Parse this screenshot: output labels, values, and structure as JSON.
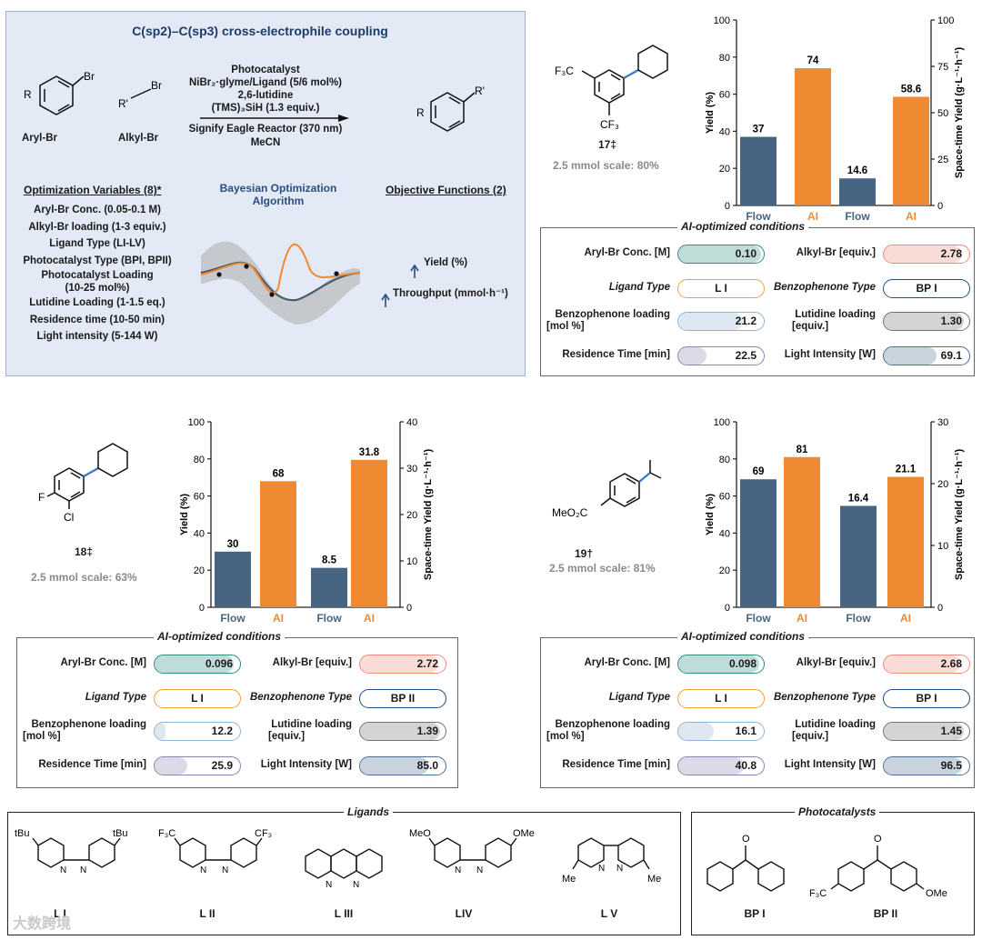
{
  "colors": {
    "flow": "#476482",
    "ai": "#f08a32",
    "teal": "#2d8b80",
    "salmon": "#ee8a7c",
    "orange": "#f0a33b",
    "navy": "#1f4e8c",
    "sky": "#8fb4d8",
    "gray": "#707070",
    "lavender": "#8d82ad",
    "steel": "#4d6e91"
  },
  "scheme": {
    "title": "C(sp2)–C(sp3) cross-electrophile coupling",
    "aryl_label": "Aryl-Br",
    "alkyl_label": "Alkyl-Br",
    "conditions": [
      "Photocatalyst",
      "NiBr₂·glyme/Ligand (5/6 mol%)",
      "2,6-lutidine",
      "(TMS)₃SiH (1.3 equiv.)"
    ],
    "conditions_below": [
      "Signify Eagle Reactor (370 nm)",
      "MeCN"
    ],
    "opt_vars_title": "Optimization Variables (8)*",
    "opt_vars": [
      "Aryl-Br Conc. (0.05-0.1 M)",
      "Alkyl-Br loading (1-3 equiv.)",
      "Ligand Type (LI-LV)",
      "Photocatalyst Type (BPI, BPII)",
      "Photocatalyst Loading",
      "(10-25 mol%)",
      "Lutidine Loading (1-1.5 eq.)",
      "Residence time (10-50 min)",
      "Light intensity (5-144 W)"
    ],
    "bo_title": [
      "Bayesian Optimization",
      "Algorithm"
    ],
    "obj_title": "Objective Functions (2)",
    "objectives": [
      "Yield (%)",
      "Throughput (mmol·h⁻¹)"
    ]
  },
  "products": {
    "p17": {
      "label": "17‡",
      "scale": "2.5 mmol scale: 80%"
    },
    "p18": {
      "label": "18‡",
      "scale": "2.5 mmol scale: 63%"
    },
    "p19": {
      "label": "19†",
      "scale": "2.5 mmol scale: 81%"
    }
  },
  "chart_data": [
    {
      "id": "17",
      "type": "bar",
      "categories": [
        "Flow",
        "AI",
        "Flow",
        "AI"
      ],
      "groups": [
        "Yield",
        "Space-time Yield"
      ],
      "values": [
        37,
        74,
        14.6,
        58.6
      ],
      "value_labels": [
        "37",
        "74",
        "14.6",
        "58.6"
      ],
      "axis": [
        "left",
        "left",
        "right",
        "right"
      ],
      "ylabel": "Yield (%)",
      "ylim": [
        0,
        100
      ],
      "yticks": [
        "0",
        "20",
        "40",
        "60",
        "80",
        "100"
      ],
      "y2label": "Space-time Yield (g·L⁻¹·h⁻¹)",
      "y2lim": [
        0,
        100
      ],
      "y2ticks": [
        "0",
        "25",
        "50",
        "75",
        "100"
      ]
    },
    {
      "id": "18",
      "type": "bar",
      "categories": [
        "Flow",
        "AI",
        "Flow",
        "AI"
      ],
      "groups": [
        "Yield",
        "Space-time Yield"
      ],
      "values": [
        30,
        68,
        8.5,
        31.8
      ],
      "value_labels": [
        "30",
        "68",
        "8.5",
        "31.8"
      ],
      "axis": [
        "left",
        "left",
        "right",
        "right"
      ],
      "ylabel": "Yield (%)",
      "ylim": [
        0,
        100
      ],
      "yticks": [
        "0",
        "20",
        "40",
        "60",
        "80",
        "100"
      ],
      "y2label": "Space-time Yield (g·L⁻¹·h⁻¹)",
      "y2lim": [
        0,
        40
      ],
      "y2ticks": [
        "0",
        "10",
        "20",
        "30",
        "40"
      ]
    },
    {
      "id": "19",
      "type": "bar",
      "categories": [
        "Flow",
        "AI",
        "Flow",
        "AI"
      ],
      "groups": [
        "Yield",
        "Space-time Yield"
      ],
      "values": [
        69,
        81,
        16.4,
        21.1
      ],
      "value_labels": [
        "69",
        "81",
        "16.4",
        "21.1"
      ],
      "axis": [
        "left",
        "left",
        "right",
        "right"
      ],
      "ylabel": "Yield (%)",
      "ylim": [
        0,
        100
      ],
      "yticks": [
        "0",
        "20",
        "40",
        "60",
        "80",
        "100"
      ],
      "y2label": "Space-time Yield (g·L⁻¹·h⁻¹)",
      "y2lim": [
        0,
        30
      ],
      "y2ticks": [
        "0",
        "10",
        "20",
        "30"
      ]
    }
  ],
  "conditions": {
    "title": "AI-optimized conditions",
    "labels": {
      "aryl": "Aryl-Br Conc. [M]",
      "alkyl": "Alkyl-Br [equiv.]",
      "ligand": "Ligand Type",
      "bp_type": "Benzophenone Type",
      "bp_load_1": "Benzophenone loading",
      "bp_load_2": "[mol %]",
      "lut_1": "Lutidine loading",
      "lut_2": "[equiv.]",
      "res": "Residence Time [min]",
      "light": "Light Intensity [W]"
    },
    "sets": {
      "c17": {
        "aryl": "0.10",
        "aryl_frac": 0.97,
        "alkyl": "2.78",
        "alkyl_frac": 0.92,
        "ligand": "L I",
        "bp_type": "BP I",
        "bp_load": "21.2",
        "bp_load_frac": 0.75,
        "lut": "1.30",
        "lut_frac": 0.94,
        "res": "22.5",
        "res_frac": 0.33,
        "light": "69.1",
        "light_frac": 0.62
      },
      "c18": {
        "aryl": "0.096",
        "aryl_frac": 0.93,
        "alkyl": "2.72",
        "alkyl_frac": 0.91,
        "ligand": "L I",
        "bp_type": "BP II",
        "bp_load": "12.2",
        "bp_load_frac": 0.13,
        "lut": "1.39",
        "lut_frac": 0.94,
        "res": "25.9",
        "res_frac": 0.38,
        "light": "85.0",
        "light_frac": 0.8
      },
      "c19": {
        "aryl": "0.098",
        "aryl_frac": 0.95,
        "alkyl": "2.68",
        "alkyl_frac": 0.89,
        "ligand": "L I",
        "bp_type": "BP I",
        "bp_load": "16.1",
        "bp_load_frac": 0.41,
        "lut": "1.45",
        "lut_frac": 0.94,
        "res": "40.8",
        "res_frac": 0.77,
        "light": "96.5",
        "light_frac": 0.91
      }
    }
  },
  "ligands": {
    "title": "Ligands",
    "items": [
      "L I",
      "L II",
      "L III",
      "LIV",
      "L V"
    ]
  },
  "photocatalysts": {
    "title": "Photocatalysts",
    "items": [
      "BP I",
      "BP II"
    ]
  },
  "chem": {
    "br": "Br",
    "r": "R",
    "rp": "R'",
    "tbu": "tBu",
    "cf3": "CF₃",
    "f3c": "F₃C",
    "f": "F",
    "cl": "Cl",
    "meo2c": "MeO₂C",
    "meo": "MeO",
    "ome": "OMe",
    "me": "Me",
    "n": "N",
    "o": "O"
  },
  "watermark": "大数跨境"
}
